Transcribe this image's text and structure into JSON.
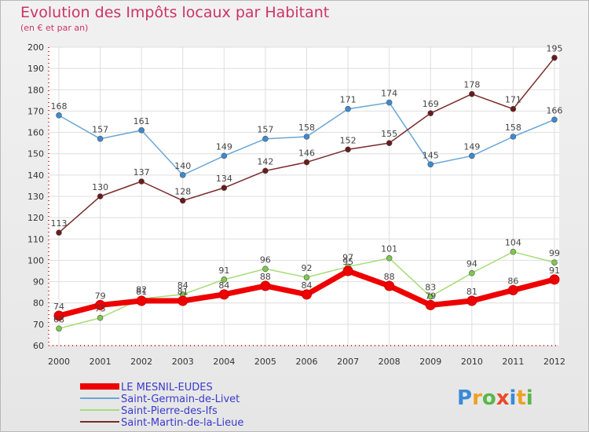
{
  "chart_data": {
    "type": "line",
    "title": "Evolution des Impôts locaux par Habitant",
    "subtitle": "(en € et par an)",
    "xlabel": "",
    "ylabel": "",
    "ylim": [
      60,
      200
    ],
    "yticks": [
      60,
      70,
      80,
      90,
      100,
      110,
      120,
      130,
      140,
      150,
      160,
      170,
      180,
      190,
      200
    ],
    "x": [
      "2000",
      "2001",
      "2002",
      "2003",
      "2004",
      "2005",
      "2006",
      "2007",
      "2008",
      "2009",
      "2010",
      "2011",
      "2012"
    ],
    "legend_position": "bottom-left",
    "grid": true,
    "series": [
      {
        "name": "LE MESNIL-EUDES",
        "color": "#ee0000",
        "marker": "#ee0000",
        "bold": true,
        "values": [
          74,
          79,
          81,
          81,
          84,
          88,
          84,
          95,
          88,
          79,
          81,
          86,
          91
        ],
        "labels": [
          "74",
          "79",
          "81",
          "81",
          "84",
          "88",
          "84",
          "95",
          "88",
          "79",
          "81",
          "86",
          "91"
        ]
      },
      {
        "name": "Saint-Germain-de-Livet",
        "color": "#6aa6d8",
        "marker": "#3c8ad0",
        "bold": false,
        "values": [
          168,
          157,
          161,
          140,
          149,
          157,
          158,
          171,
          174,
          145,
          149,
          158,
          166
        ],
        "labels": [
          "168",
          "157",
          "161",
          "140",
          "149",
          "157",
          "158",
          "171",
          "174",
          "145",
          "149",
          "158",
          "166"
        ]
      },
      {
        "name": "Saint-Pierre-des-Ifs",
        "color": "#a8dc78",
        "marker": "#7ec84a",
        "bold": false,
        "values": [
          68,
          73,
          82,
          84,
          91,
          96,
          92,
          97,
          101,
          83,
          94,
          104,
          99
        ],
        "labels": [
          "68",
          "73",
          "82",
          "84",
          "91",
          "96",
          "92",
          "97",
          "101",
          "83",
          "94",
          "104",
          "99"
        ]
      },
      {
        "name": "Saint-Martin-de-la-Lieue",
        "color": "#7a2a2a",
        "marker": "#6a1a1a",
        "bold": false,
        "values": [
          113,
          130,
          137,
          128,
          134,
          142,
          146,
          152,
          155,
          169,
          178,
          171,
          195
        ],
        "labels": [
          "113",
          "130",
          "137",
          "128",
          "134",
          "142",
          "146",
          "152",
          "155",
          "169",
          "178",
          "171",
          "195"
        ]
      }
    ]
  },
  "logo": {
    "text": "Proxiti",
    "letters": [
      "P",
      "r",
      "o",
      "x",
      "i",
      "t",
      "i"
    ]
  }
}
